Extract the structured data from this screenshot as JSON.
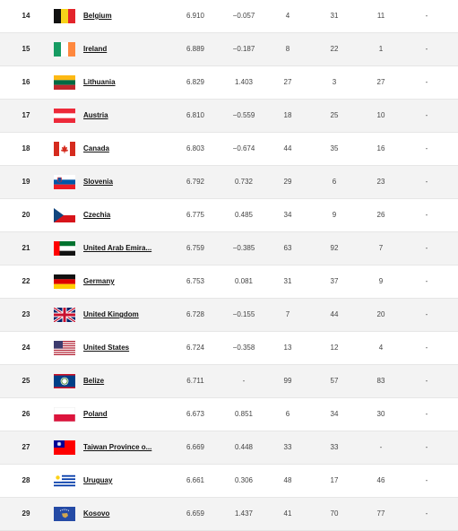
{
  "rows": [
    {
      "rank": "14",
      "country": "Belgium",
      "flag": "belgium-flag-icon",
      "score": "6.910",
      "change": "−0.057",
      "c1": "4",
      "c2": "31",
      "c3": "11",
      "c4": "-"
    },
    {
      "rank": "15",
      "country": "Ireland",
      "flag": "ireland-flag-icon",
      "score": "6.889",
      "change": "−0.187",
      "c1": "8",
      "c2": "22",
      "c3": "1",
      "c4": "-"
    },
    {
      "rank": "16",
      "country": "Lithuania",
      "flag": "lithuania-flag-icon",
      "score": "6.829",
      "change": "1.403",
      "c1": "27",
      "c2": "3",
      "c3": "27",
      "c4": "-"
    },
    {
      "rank": "17",
      "country": "Austria",
      "flag": "austria-flag-icon",
      "score": "6.810",
      "change": "−0.559",
      "c1": "18",
      "c2": "25",
      "c3": "10",
      "c4": "-"
    },
    {
      "rank": "18",
      "country": "Canada",
      "flag": "canada-flag-icon",
      "score": "6.803",
      "change": "−0.674",
      "c1": "44",
      "c2": "35",
      "c3": "16",
      "c4": "-"
    },
    {
      "rank": "19",
      "country": "Slovenia",
      "flag": "slovenia-flag-icon",
      "score": "6.792",
      "change": "0.732",
      "c1": "29",
      "c2": "6",
      "c3": "23",
      "c4": "-"
    },
    {
      "rank": "20",
      "country": "Czechia",
      "flag": "czechia-flag-icon",
      "score": "6.775",
      "change": "0.485",
      "c1": "34",
      "c2": "9",
      "c3": "26",
      "c4": "-"
    },
    {
      "rank": "21",
      "country": "United Arab Emira...",
      "flag": "uae-flag-icon",
      "score": "6.759",
      "change": "−0.385",
      "c1": "63",
      "c2": "92",
      "c3": "7",
      "c4": "-"
    },
    {
      "rank": "22",
      "country": "Germany",
      "flag": "germany-flag-icon",
      "score": "6.753",
      "change": "0.081",
      "c1": "31",
      "c2": "37",
      "c3": "9",
      "c4": "-"
    },
    {
      "rank": "23",
      "country": "United Kingdom",
      "flag": "uk-flag-icon",
      "score": "6.728",
      "change": "−0.155",
      "c1": "7",
      "c2": "44",
      "c3": "20",
      "c4": "-"
    },
    {
      "rank": "24",
      "country": "United States",
      "flag": "usa-flag-icon",
      "score": "6.724",
      "change": "−0.358",
      "c1": "13",
      "c2": "12",
      "c3": "4",
      "c4": "-"
    },
    {
      "rank": "25",
      "country": "Belize",
      "flag": "belize-flag-icon",
      "score": "6.711",
      "change": "-",
      "c1": "99",
      "c2": "57",
      "c3": "83",
      "c4": "-"
    },
    {
      "rank": "26",
      "country": "Poland",
      "flag": "poland-flag-icon",
      "score": "6.673",
      "change": "0.851",
      "c1": "6",
      "c2": "34",
      "c3": "30",
      "c4": "-"
    },
    {
      "rank": "27",
      "country": "Taiwan Province o...",
      "flag": "taiwan-flag-icon",
      "score": "6.669",
      "change": "0.448",
      "c1": "33",
      "c2": "33",
      "c3": "-",
      "c4": "-"
    },
    {
      "rank": "28",
      "country": "Uruguay",
      "flag": "uruguay-flag-icon",
      "score": "6.661",
      "change": "0.306",
      "c1": "48",
      "c2": "17",
      "c3": "46",
      "c4": "-"
    },
    {
      "rank": "29",
      "country": "Kosovo",
      "flag": "kosovo-flag-icon",
      "score": "6.659",
      "change": "1.437",
      "c1": "41",
      "c2": "70",
      "c3": "77",
      "c4": "-"
    }
  ]
}
